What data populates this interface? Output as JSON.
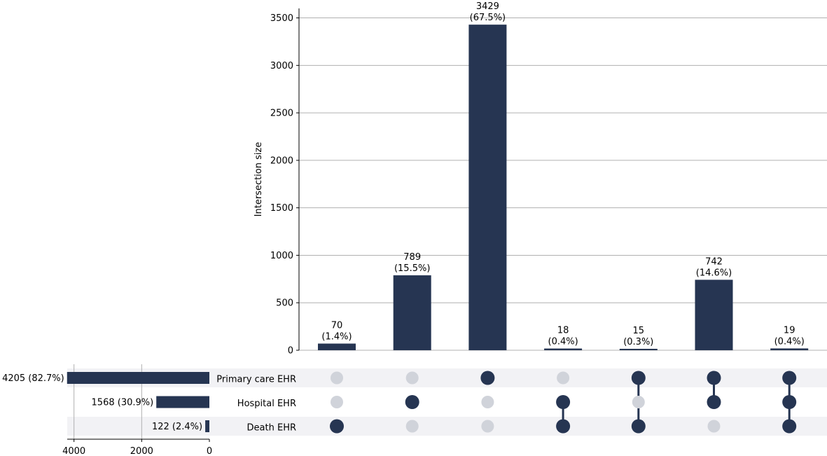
{
  "chart_data": {
    "type": "upset",
    "intersection_axis": {
      "ylabel": "Intersection size",
      "ylim": [
        0,
        3600
      ],
      "ticks": [
        0,
        500,
        1000,
        1500,
        2000,
        2500,
        3000,
        3500
      ],
      "grid": true
    },
    "intersections": [
      {
        "value": 70,
        "label": "70",
        "pct_label": "(1.4%)",
        "members": [
          false,
          false,
          true
        ]
      },
      {
        "value": 789,
        "label": "789",
        "pct_label": "(15.5%)",
        "members": [
          false,
          true,
          false
        ]
      },
      {
        "value": 3429,
        "label": "3429",
        "pct_label": "(67.5%)",
        "members": [
          true,
          false,
          false
        ]
      },
      {
        "value": 18,
        "label": "18",
        "pct_label": "(0.4%)",
        "members": [
          false,
          true,
          true
        ]
      },
      {
        "value": 15,
        "label": "15",
        "pct_label": "(0.3%)",
        "members": [
          true,
          false,
          true
        ]
      },
      {
        "value": 742,
        "label": "742",
        "pct_label": "(14.6%)",
        "members": [
          true,
          true,
          false
        ]
      },
      {
        "value": 19,
        "label": "19",
        "pct_label": "(0.4%)",
        "members": [
          true,
          true,
          true
        ]
      }
    ],
    "sets": [
      {
        "name": "Primary care EHR",
        "size": 4205,
        "label": "4205 (82.7%)"
      },
      {
        "name": "Hospital EHR",
        "size": 1568,
        "label": "1568 (30.9%)"
      },
      {
        "name": "Death EHR",
        "size": 122,
        "label": "122 (2.4%)"
      }
    ],
    "set_size_axis": {
      "xlim": [
        4200,
        0
      ],
      "ticks": [
        4000,
        2000,
        0
      ],
      "grid": true
    },
    "colors": {
      "bar": "#263552",
      "dot_active": "#263552",
      "dot_inactive": "#d0d3da",
      "row_shade": "#f2f2f5",
      "grid": "#b0b0b0"
    }
  }
}
